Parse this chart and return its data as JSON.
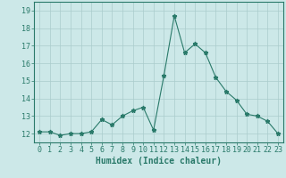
{
  "x": [
    0,
    1,
    2,
    3,
    4,
    5,
    6,
    7,
    8,
    9,
    10,
    11,
    12,
    13,
    14,
    15,
    16,
    17,
    18,
    19,
    20,
    21,
    22,
    23
  ],
  "y": [
    12.1,
    12.1,
    11.9,
    12.0,
    12.0,
    12.1,
    12.8,
    12.5,
    13.0,
    13.3,
    13.5,
    12.2,
    15.3,
    18.7,
    16.6,
    17.1,
    16.6,
    15.2,
    14.4,
    13.9,
    13.1,
    13.0,
    12.7,
    12.0
  ],
  "line_color": "#2a7a6a",
  "marker": "*",
  "marker_size": 3.5,
  "bg_color": "#cce8e8",
  "grid_color": "#aacccc",
  "xlabel": "Humidex (Indice chaleur)",
  "xlabel_fontsize": 7,
  "ylim": [
    11.5,
    19.5
  ],
  "xlim": [
    -0.5,
    23.5
  ],
  "yticks": [
    12,
    13,
    14,
    15,
    16,
    17,
    18,
    19
  ],
  "xticks": [
    0,
    1,
    2,
    3,
    4,
    5,
    6,
    7,
    8,
    9,
    10,
    11,
    12,
    13,
    14,
    15,
    16,
    17,
    18,
    19,
    20,
    21,
    22,
    23
  ],
  "tick_label_fontsize": 6,
  "tick_color": "#2a7a6a",
  "spine_color": "#2a7a6a",
  "linewidth": 0.8
}
